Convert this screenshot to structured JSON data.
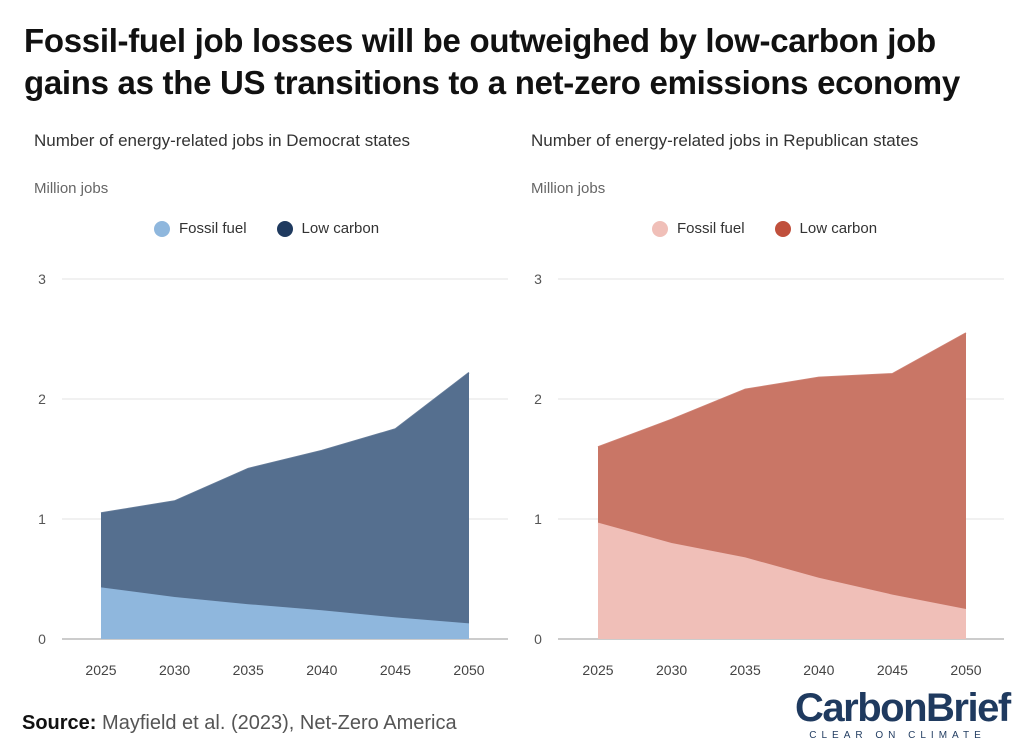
{
  "headline": "Fossil-fuel job losses will be outweighed by low-carbon job gains as the US transitions to a net-zero emissions economy",
  "source": {
    "label": "Source:",
    "text": "Mayfield et al. (2023), Net-Zero America"
  },
  "logo": {
    "brand": "CarbonBrief",
    "tagline": "CLEAR ON CLIMATE"
  },
  "chart_data": [
    {
      "type": "area",
      "stacked": true,
      "title": "Number of energy-related jobs in Democrat states",
      "unit": "Million jobs",
      "x": [
        2025,
        2030,
        2035,
        2040,
        2045,
        2050
      ],
      "xticks": [
        "2025",
        "2030",
        "2035",
        "2040",
        "2045",
        "2050"
      ],
      "yticks": [
        "0",
        "1",
        "2",
        "3"
      ],
      "ylim": [
        0,
        3
      ],
      "grid": true,
      "legend_position": "top",
      "series": [
        {
          "name": "Fossil fuel",
          "color": "#8fb7dd",
          "values": [
            0.43,
            0.35,
            0.29,
            0.24,
            0.18,
            0.13
          ]
        },
        {
          "name": "Low carbon",
          "color": "#556f8f",
          "legend_color": "#1f3a5f",
          "values": [
            0.62,
            0.8,
            1.13,
            1.33,
            1.57,
            2.09
          ]
        }
      ]
    },
    {
      "type": "area",
      "stacked": true,
      "title": "Number of energy-related jobs in Republican states",
      "unit": "Million jobs",
      "x": [
        2025,
        2030,
        2035,
        2040,
        2045,
        2050
      ],
      "xticks": [
        "2025",
        "2030",
        "2035",
        "2040",
        "2045",
        "2050"
      ],
      "yticks": [
        "0",
        "1",
        "2",
        "3"
      ],
      "ylim": [
        0,
        3
      ],
      "grid": true,
      "legend_position": "top",
      "series": [
        {
          "name": "Fossil fuel",
          "color": "#f0bfb8",
          "values": [
            0.97,
            0.8,
            0.68,
            0.51,
            0.37,
            0.25
          ]
        },
        {
          "name": "Low carbon",
          "color": "#c97666",
          "legend_color": "#c0503c",
          "values": [
            0.63,
            1.03,
            1.4,
            1.67,
            1.84,
            2.3
          ]
        }
      ]
    }
  ]
}
